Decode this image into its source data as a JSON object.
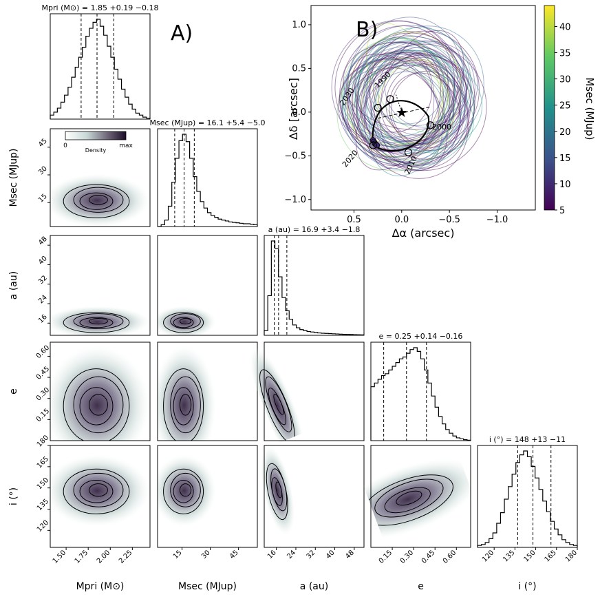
{
  "figure": {
    "panel_a_label": "A)",
    "panel_b_label": "B)"
  },
  "chart_data": [
    {
      "panel": "A",
      "type": "corner",
      "parameters": [
        {
          "id": "mpri",
          "axis_label": "Mpri (M⊙)",
          "title": "Mpri (M⊙) = 1.85 +0.19 −0.18",
          "median": 1.85,
          "err_plus": 0.19,
          "err_minus": 0.18,
          "range": [
            1.32,
            2.45
          ],
          "ticks": [
            1.5,
            1.75,
            2.0,
            2.25
          ],
          "tick_labels": [
            "1.50",
            "1.75",
            "2.00",
            "2.25"
          ]
        },
        {
          "id": "msec",
          "axis_label": "Msec (MJup)",
          "title": "Msec (MJup) = 16.1 +5.4 −5.0",
          "median": 16.1,
          "err_plus": 5.4,
          "err_minus": 5.0,
          "range": [
            2,
            55
          ],
          "ticks": [
            15,
            30,
            45
          ],
          "tick_labels": [
            "15",
            "30",
            "45"
          ]
        },
        {
          "id": "a",
          "axis_label": "a (au)",
          "title": "a (au) = 16.9 +3.4 −1.8",
          "median": 16.9,
          "err_plus": 3.4,
          "err_minus": 1.8,
          "range": [
            11,
            52
          ],
          "ticks": [
            16,
            24,
            32,
            40,
            48
          ],
          "tick_labels": [
            "16",
            "24",
            "32",
            "40",
            "48"
          ]
        },
        {
          "id": "e",
          "axis_label": "e",
          "title": "e = 0.25 +0.14 −0.16",
          "median": 0.25,
          "err_plus": 0.14,
          "err_minus": 0.16,
          "range": [
            0,
            0.7
          ],
          "ticks": [
            0.15,
            0.3,
            0.45,
            0.6
          ],
          "tick_labels": [
            "0.15",
            "0.30",
            "0.45",
            "0.60"
          ]
        },
        {
          "id": "i",
          "axis_label": "i (°)",
          "title": "i (°) = 148 +13 −11",
          "median": 148,
          "err_plus": 13,
          "err_minus": 11,
          "range": [
            108,
            180
          ],
          "ticks": [
            120,
            135,
            150,
            165,
            180
          ],
          "tick_labels": [
            "120",
            "135",
            "150",
            "165",
            "180"
          ]
        }
      ],
      "histograms": {
        "mpri": [
          0.04,
          0.07,
          0.11,
          0.17,
          0.24,
          0.32,
          0.42,
          0.52,
          0.62,
          0.72,
          0.83,
          0.91,
          0.97,
          1.0,
          0.93,
          0.84,
          0.73,
          0.62,
          0.5,
          0.4,
          0.3,
          0.22,
          0.15,
          0.1,
          0.06,
          0.04,
          0.02,
          0.01
        ],
        "msec": [
          0.0,
          0.02,
          0.07,
          0.22,
          0.48,
          0.74,
          0.93,
          1.0,
          0.92,
          0.74,
          0.54,
          0.38,
          0.27,
          0.2,
          0.15,
          0.12,
          0.1,
          0.08,
          0.07,
          0.06,
          0.05,
          0.045,
          0.04,
          0.035,
          0.03,
          0.03,
          0.025,
          0.02
        ],
        "a": [
          0.05,
          0.42,
          1.0,
          0.92,
          0.62,
          0.4,
          0.26,
          0.17,
          0.11,
          0.08,
          0.06,
          0.05,
          0.04,
          0.035,
          0.03,
          0.025,
          0.022,
          0.02,
          0.018,
          0.016,
          0.014,
          0.012,
          0.01,
          0.009,
          0.008,
          0.007,
          0.006,
          0.005
        ],
        "e": [
          0.58,
          0.62,
          0.66,
          0.7,
          0.72,
          0.76,
          0.8,
          0.84,
          0.88,
          0.9,
          0.94,
          0.98,
          1.0,
          0.96,
          0.88,
          0.76,
          0.62,
          0.48,
          0.36,
          0.26,
          0.18,
          0.12,
          0.08,
          0.05,
          0.03,
          0.02,
          0.01,
          0.005
        ],
        "i": [
          0.02,
          0.03,
          0.05,
          0.09,
          0.15,
          0.25,
          0.36,
          0.5,
          0.63,
          0.76,
          0.88,
          0.96,
          1.0,
          0.94,
          0.84,
          0.72,
          0.6,
          0.48,
          0.37,
          0.27,
          0.19,
          0.13,
          0.08,
          0.05,
          0.03,
          0.02
        ]
      },
      "colorbar": {
        "label_min": "0",
        "label_max": "max",
        "title": "Density"
      },
      "y_axis_labels": [
        "Msec (MJup)",
        "a (au)",
        "e",
        "i (°)"
      ]
    },
    {
      "panel": "B",
      "type": "orbit",
      "xlabel": "Δα (arcsec)",
      "ylabel": "Δδ [arcsec]",
      "xlim": [
        0.95,
        -1.4
      ],
      "ylim": [
        -1.12,
        1.22
      ],
      "xticks": [
        0.5,
        0.0,
        -0.5,
        -1.0
      ],
      "xtick_labels": [
        "0.5",
        "0.0",
        "−0.5",
        "−1.0"
      ],
      "yticks": [
        1.0,
        0.5,
        0.0,
        -0.5,
        -1.0
      ],
      "ytick_labels": [
        "1.0",
        "0.5",
        "0.0",
        "−0.5",
        "−1.0"
      ],
      "colorbar": {
        "label": "Msec (MJup)",
        "range": [
          5,
          44
        ],
        "ticks": [
          5,
          10,
          15,
          20,
          25,
          30,
          35,
          40
        ],
        "tick_labels": [
          "5",
          "10",
          "15",
          "20",
          "25",
          "30",
          "35",
          "40"
        ]
      },
      "star": [
        0,
        0
      ],
      "epochs": [
        {
          "label": "1990",
          "pos": [
            0.12,
            0.15
          ]
        },
        {
          "label": "2000",
          "pos": [
            -0.3,
            -0.15
          ]
        },
        {
          "label": "2010",
          "pos": [
            -0.07,
            -0.46
          ]
        },
        {
          "label": "2020",
          "pos": [
            0.3,
            -0.38
          ]
        },
        {
          "label": "2030",
          "pos": [
            0.25,
            0.05
          ]
        }
      ],
      "observed_points": [
        [
          0.3,
          -0.32
        ],
        [
          0.29,
          -0.34
        ],
        [
          0.28,
          -0.36
        ],
        [
          0.27,
          -0.37
        ],
        [
          0.26,
          -0.38
        ]
      ]
    }
  ]
}
